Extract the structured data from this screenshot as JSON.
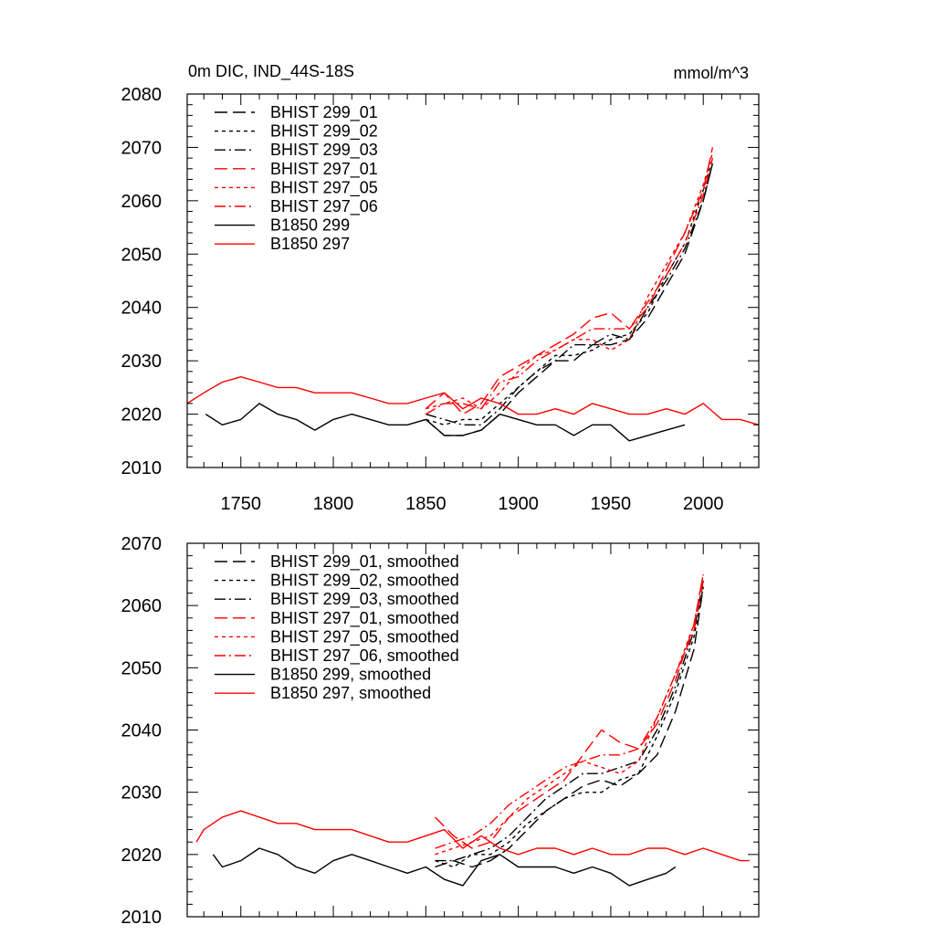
{
  "chart_data": [
    {
      "type": "line",
      "title": "0m DIC, IND_44S-18S",
      "units": "mmol/m^3",
      "xlim": [
        1721,
        2030
      ],
      "ylim": [
        2010,
        2080
      ],
      "xticks": [
        "1750",
        "1800",
        "1850",
        "1900",
        "1950",
        "2000"
      ],
      "yticks": [
        "2010",
        "2020",
        "2030",
        "2040",
        "2050",
        "2060",
        "2070",
        "2080"
      ],
      "legend_position": "top-left",
      "series": [
        {
          "name": "BHIST 299_01",
          "color": "#000000",
          "dash": "long-dash",
          "x": [
            1850,
            1860,
            1870,
            1880,
            1890,
            1900,
            1910,
            1920,
            1930,
            1940,
            1950,
            1960,
            1970,
            1980,
            1990,
            2000,
            2005
          ],
          "y": [
            2019,
            2016,
            2016,
            2017,
            2020,
            2024,
            2027,
            2030,
            2030,
            2033,
            2033,
            2034,
            2038,
            2044,
            2050,
            2060,
            2067
          ]
        },
        {
          "name": "BHIST 299_02",
          "color": "#000000",
          "dash": "short-dash",
          "x": [
            1850,
            1860,
            1870,
            1880,
            1890,
            1900,
            1910,
            1920,
            1930,
            1940,
            1950,
            1960,
            1970,
            1980,
            1990,
            2000,
            2005
          ],
          "y": [
            2019,
            2018,
            2019,
            2019,
            2022,
            2025,
            2028,
            2031,
            2031,
            2032,
            2034,
            2035,
            2039,
            2046,
            2052,
            2062,
            2068
          ]
        },
        {
          "name": "BHIST 299_03",
          "color": "#000000",
          "dash": "dash-dot",
          "x": [
            1850,
            1860,
            1870,
            1880,
            1890,
            1900,
            1910,
            1920,
            1930,
            1940,
            1950,
            1960,
            1970,
            1980,
            1990,
            2000,
            2005
          ],
          "y": [
            2020,
            2019,
            2018,
            2018,
            2021,
            2025,
            2028,
            2030,
            2033,
            2033,
            2035,
            2034,
            2040,
            2045,
            2051,
            2060,
            2067
          ]
        },
        {
          "name": "BHIST 297_01",
          "color": "#ff0000",
          "dash": "long-dash",
          "x": [
            1850,
            1860,
            1870,
            1880,
            1890,
            1900,
            1910,
            1920,
            1930,
            1940,
            1950,
            1960,
            1970,
            1980,
            1990,
            2000,
            2005
          ],
          "y": [
            2021,
            2024,
            2020,
            2022,
            2027,
            2029,
            2031,
            2033,
            2035,
            2038,
            2039,
            2036,
            2040,
            2047,
            2054,
            2062,
            2070
          ]
        },
        {
          "name": "BHIST 297_05",
          "color": "#ff0000",
          "dash": "short-dash",
          "x": [
            1850,
            1860,
            1870,
            1880,
            1890,
            1900,
            1910,
            1920,
            1930,
            1940,
            1950,
            1960,
            1970,
            1980,
            1990,
            2000,
            2005
          ],
          "y": [
            2021,
            2022,
            2023,
            2021,
            2024,
            2028,
            2031,
            2032,
            2034,
            2034,
            2032,
            2034,
            2042,
            2048,
            2054,
            2063,
            2069
          ]
        },
        {
          "name": "BHIST 297_06",
          "color": "#ff0000",
          "dash": "dash-dot",
          "x": [
            1850,
            1860,
            1870,
            1880,
            1890,
            1900,
            1910,
            1920,
            1930,
            1940,
            1950,
            1960,
            1970,
            1980,
            1990,
            2000,
            2005
          ],
          "y": [
            2020,
            2022,
            2022,
            2021,
            2026,
            2027,
            2030,
            2032,
            2034,
            2036,
            2036,
            2036,
            2041,
            2046,
            2052,
            2061,
            2068
          ]
        },
        {
          "name": "B1850 299",
          "color": "#000000",
          "dash": "solid",
          "x": [
            1731,
            1740,
            1750,
            1760,
            1770,
            1780,
            1790,
            1800,
            1810,
            1820,
            1830,
            1840,
            1850,
            1860,
            1870,
            1880,
            1890,
            1900,
            1910,
            1920,
            1930,
            1940,
            1950,
            1960,
            1970,
            1980,
            1990
          ],
          "y": [
            2020,
            2018,
            2019,
            2022,
            2020,
            2019,
            2017,
            2019,
            2020,
            2019,
            2018,
            2018,
            2019,
            2016,
            2016,
            2017,
            2020,
            2019,
            2018,
            2018,
            2016,
            2018,
            2018,
            2015,
            2016,
            2017,
            2018
          ]
        },
        {
          "name": "B1850 297",
          "color": "#ff0000",
          "dash": "solid",
          "x": [
            1721,
            1730,
            1740,
            1750,
            1760,
            1770,
            1780,
            1790,
            1800,
            1810,
            1820,
            1830,
            1840,
            1850,
            1860,
            1870,
            1880,
            1890,
            1900,
            1910,
            1920,
            1930,
            1940,
            1950,
            1960,
            1970,
            1980,
            1990,
            2000,
            2010,
            2020,
            2030
          ],
          "y": [
            2022,
            2024,
            2026,
            2027,
            2026,
            2025,
            2025,
            2024,
            2024,
            2024,
            2023,
            2022,
            2022,
            2023,
            2024,
            2021,
            2023,
            2022,
            2020,
            2020,
            2021,
            2020,
            2022,
            2021,
            2020,
            2020,
            2021,
            2020,
            2022,
            2019,
            2019,
            2018
          ]
        }
      ]
    },
    {
      "type": "line",
      "title": "",
      "xlim": [
        1721,
        2030
      ],
      "ylim": [
        2010,
        2070
      ],
      "yticks": [
        "2010",
        "2020",
        "2030",
        "2040",
        "2050",
        "2060",
        "2070"
      ],
      "legend_position": "top-left",
      "series": [
        {
          "name": "BHIST 299_01, smoothed",
          "color": "#000000",
          "dash": "long-dash",
          "x": [
            1855,
            1865,
            1875,
            1885,
            1895,
            1905,
            1915,
            1925,
            1935,
            1945,
            1955,
            1965,
            1975,
            1985,
            1995,
            2000
          ],
          "y": [
            2018,
            2019,
            2018,
            2019,
            2021,
            2024,
            2027,
            2029,
            2031,
            2032,
            2031,
            2033,
            2036,
            2043,
            2053,
            2063
          ]
        },
        {
          "name": "BHIST 299_02, smoothed",
          "color": "#000000",
          "dash": "short-dash",
          "x": [
            1855,
            1865,
            1875,
            1885,
            1895,
            1905,
            1915,
            1925,
            1935,
            1945,
            1955,
            1965,
            1975,
            1985,
            1995,
            2000
          ],
          "y": [
            2019,
            2018,
            2020,
            2020,
            2022,
            2025,
            2027,
            2029,
            2030,
            2030,
            2032,
            2033,
            2039,
            2046,
            2055,
            2063
          ]
        },
        {
          "name": "BHIST 299_03, smoothed",
          "color": "#000000",
          "dash": "dash-dot",
          "x": [
            1855,
            1865,
            1875,
            1885,
            1895,
            1905,
            1915,
            1925,
            1935,
            1945,
            1955,
            1965,
            1975,
            1985,
            1995,
            2000
          ],
          "y": [
            2019,
            2019,
            2020,
            2021,
            2023,
            2026,
            2029,
            2031,
            2033,
            2033,
            2034,
            2035,
            2040,
            2047,
            2056,
            2064
          ]
        },
        {
          "name": "BHIST 297_01, smoothed",
          "color": "#ff0000",
          "dash": "long-dash",
          "x": [
            1855,
            1865,
            1875,
            1885,
            1895,
            1905,
            1915,
            1925,
            1935,
            1945,
            1955,
            1965,
            1975,
            1985,
            1995,
            2000
          ],
          "y": [
            2026,
            2023,
            2021,
            2022,
            2026,
            2028,
            2030,
            2032,
            2036,
            2040,
            2038,
            2037,
            2041,
            2048,
            2057,
            2065
          ]
        },
        {
          "name": "BHIST 297_05, smoothed",
          "color": "#ff0000",
          "dash": "short-dash",
          "x": [
            1855,
            1865,
            1875,
            1885,
            1895,
            1905,
            1915,
            1925,
            1935,
            1945,
            1955,
            1965,
            1975,
            1985,
            1995,
            2000
          ],
          "y": [
            2020,
            2021,
            2022,
            2023,
            2026,
            2029,
            2031,
            2033,
            2035,
            2034,
            2033,
            2035,
            2042,
            2049,
            2057,
            2065
          ]
        },
        {
          "name": "BHIST 297_06, smoothed",
          "color": "#ff0000",
          "dash": "dash-dot",
          "x": [
            1855,
            1865,
            1875,
            1885,
            1895,
            1905,
            1915,
            1925,
            1935,
            1945,
            1955,
            1965,
            1975,
            1985,
            1995,
            2000
          ],
          "y": [
            2021,
            2022,
            2023,
            2025,
            2028,
            2030,
            2032,
            2034,
            2035,
            2036,
            2036,
            2037,
            2042,
            2049,
            2056,
            2064
          ]
        },
        {
          "name": "B1850 299, smoothed",
          "color": "#000000",
          "dash": "solid",
          "x": [
            1735,
            1740,
            1750,
            1760,
            1770,
            1780,
            1790,
            1800,
            1810,
            1820,
            1830,
            1840,
            1850,
            1860,
            1870,
            1880,
            1890,
            1900,
            1910,
            1920,
            1930,
            1940,
            1950,
            1960,
            1970,
            1980,
            1985
          ],
          "y": [
            2020,
            2018,
            2019,
            2021,
            2020,
            2018,
            2017,
            2019,
            2020,
            2019,
            2018,
            2017,
            2018,
            2016,
            2015,
            2019,
            2020,
            2018,
            2018,
            2018,
            2017,
            2018,
            2017,
            2015,
            2016,
            2017,
            2018
          ]
        },
        {
          "name": "B1850 297, smoothed",
          "color": "#ff0000",
          "dash": "solid",
          "x": [
            1726,
            1730,
            1740,
            1750,
            1760,
            1770,
            1780,
            1790,
            1800,
            1810,
            1820,
            1830,
            1840,
            1850,
            1860,
            1870,
            1880,
            1890,
            1900,
            1910,
            1920,
            1930,
            1940,
            1950,
            1960,
            1970,
            1980,
            1990,
            2000,
            2010,
            2020,
            2025
          ],
          "y": [
            2022,
            2024,
            2026,
            2027,
            2026,
            2025,
            2025,
            2024,
            2024,
            2024,
            2023,
            2022,
            2022,
            2023,
            2024,
            2021,
            2023,
            2021,
            2020,
            2021,
            2021,
            2020,
            2021,
            2020,
            2020,
            2021,
            2021,
            2020,
            2021,
            2020,
            2019,
            2019
          ]
        }
      ]
    }
  ]
}
